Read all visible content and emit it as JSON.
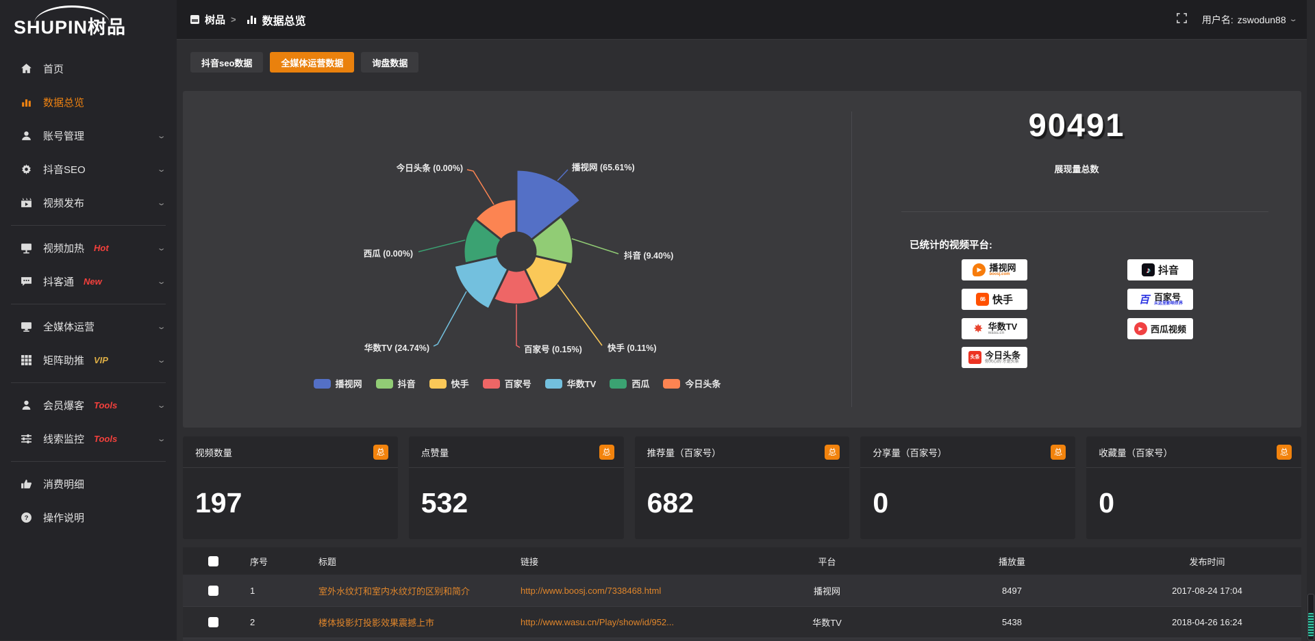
{
  "app": {
    "logo_text": "SHUPIN树品"
  },
  "topbar": {
    "breadcrumb_root": "树品",
    "breadcrumb_sep": ">",
    "breadcrumb_current": "数据总览",
    "username_label": "用户名:",
    "username": "zswodun88"
  },
  "sidebar": {
    "items": [
      {
        "label": "首页",
        "badge": ""
      },
      {
        "label": "数据总览",
        "badge": ""
      },
      {
        "label": "账号管理",
        "badge": ""
      },
      {
        "label": "抖音SEO",
        "badge": ""
      },
      {
        "label": "视频发布",
        "badge": ""
      },
      {
        "label": "视频加热",
        "badge": "Hot"
      },
      {
        "label": "抖客通",
        "badge": "New"
      },
      {
        "label": "全媒体运营",
        "badge": ""
      },
      {
        "label": "矩阵助推",
        "badge": "VIP"
      },
      {
        "label": "会员爆客",
        "badge": "Tools"
      },
      {
        "label": "线索监控",
        "badge": "Tools"
      },
      {
        "label": "消费明细",
        "badge": ""
      },
      {
        "label": "操作说明",
        "badge": ""
      }
    ]
  },
  "tabs": [
    {
      "label": "抖音seo数据"
    },
    {
      "label": "全媒体运营数据"
    },
    {
      "label": "询盘数据"
    }
  ],
  "chart_data": {
    "type": "pie",
    "variant": "nightingale-rose",
    "legend_position": "bottom",
    "label_format": "{name} ({pct}%)",
    "items": [
      {
        "name": "播视网",
        "pct": 65.61,
        "color": "#5470c6"
      },
      {
        "name": "抖音",
        "pct": 9.4,
        "color": "#91cc75"
      },
      {
        "name": "快手",
        "pct": 0.11,
        "color": "#fac858"
      },
      {
        "name": "百家号",
        "pct": 0.15,
        "color": "#ee6666"
      },
      {
        "name": "华数TV",
        "pct": 24.74,
        "color": "#73c0de"
      },
      {
        "name": "西瓜",
        "pct": 0.0,
        "color": "#3ba272"
      },
      {
        "name": "今日头条",
        "pct": 0.0,
        "color": "#fc8452"
      }
    ]
  },
  "summary": {
    "total_value": "90491",
    "total_label": "展现量总数",
    "platforms_title": "已统计的视频平台:",
    "platform_badges": [
      {
        "name": "播视网",
        "sub": "boosj.com"
      },
      {
        "name": "快手",
        "sub": ""
      },
      {
        "name": "华数TV",
        "sub": "wasu.cn"
      },
      {
        "name": "今日头条",
        "sub": "你关心的 才是头条"
      },
      {
        "name": "抖音",
        "sub": ""
      },
      {
        "name": "百家号",
        "sub": "从这里影响世界"
      },
      {
        "name": "西瓜视频",
        "sub": ""
      }
    ]
  },
  "stat_cards": [
    {
      "title": "视频数量",
      "badge": "总",
      "value": "197"
    },
    {
      "title": "点赞量",
      "badge": "总",
      "value": "532"
    },
    {
      "title": "推荐量（百家号）",
      "badge": "总",
      "value": "682"
    },
    {
      "title": "分享量（百家号）",
      "badge": "总",
      "value": "0"
    },
    {
      "title": "收藏量（百家号）",
      "badge": "总",
      "value": "0"
    }
  ],
  "table": {
    "headers": [
      "序号",
      "标题",
      "链接",
      "平台",
      "播放量",
      "发布时间"
    ],
    "rows": [
      {
        "no": "1",
        "title": "室外水纹灯和室内水纹灯的区别和简介",
        "link": "http://www.boosj.com/7338468.html",
        "platform": "播视网",
        "plays": "8497",
        "time": "2017-08-24 17:04"
      },
      {
        "no": "2",
        "title": "楼体投影灯投影效果震撼上市",
        "link": "http://www.wasu.cn/Play/show/id/952...",
        "platform": "华数TV",
        "plays": "5438",
        "time": "2018-04-26 16:24"
      }
    ]
  }
}
